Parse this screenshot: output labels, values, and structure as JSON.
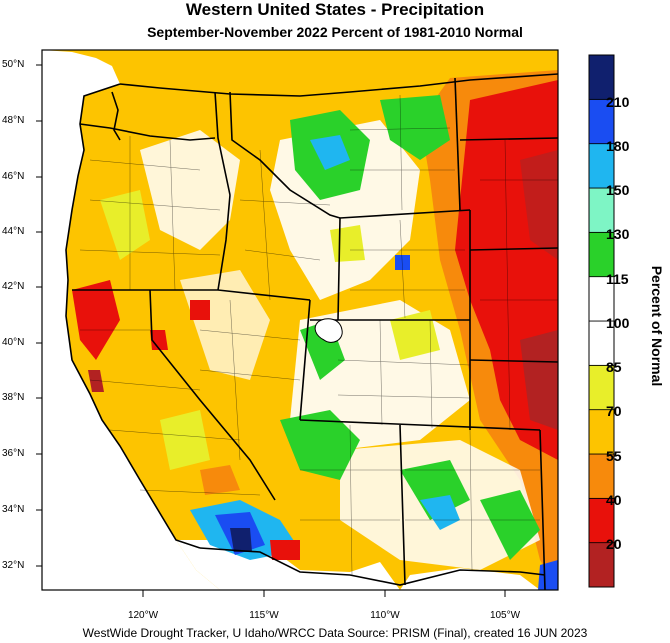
{
  "title": "Western United States - Precipitation",
  "subtitle": "September-November 2022  Percent of 1981-2010 Normal",
  "footer": "WestWide Drought Tracker, U Idaho/WRCC Data Source: PRISM (Final), created 16 JUN 2023",
  "colorbar": {
    "title": "Percent of Normal",
    "bins": [
      {
        "color": "#b22222",
        "label": "20"
      },
      {
        "color": "#e8110b",
        "label": "40"
      },
      {
        "color": "#f78a0c",
        "label": "55"
      },
      {
        "color": "#fdc400",
        "label": "70"
      },
      {
        "color": "#e8ee2a",
        "label": "85"
      },
      {
        "color": "#ffffff",
        "label": "100"
      },
      {
        "color": "#ffffff",
        "label": "115"
      },
      {
        "color": "#2ad12a",
        "label": "130"
      },
      {
        "color": "#7ef5c5",
        "label": "150"
      },
      {
        "color": "#1fb6f0",
        "label": "180"
      },
      {
        "color": "#1a4df2",
        "label": "210"
      },
      {
        "color": "#10206e",
        "label": ""
      }
    ]
  },
  "axes": {
    "lat_labels": [
      "50°N",
      "48°N",
      "46°N",
      "44°N",
      "42°N",
      "40°N",
      "38°N",
      "36°N",
      "34°N",
      "32°N"
    ],
    "lon_labels": [
      "120°W",
      "115°W",
      "110°W",
      "105°W"
    ]
  }
}
